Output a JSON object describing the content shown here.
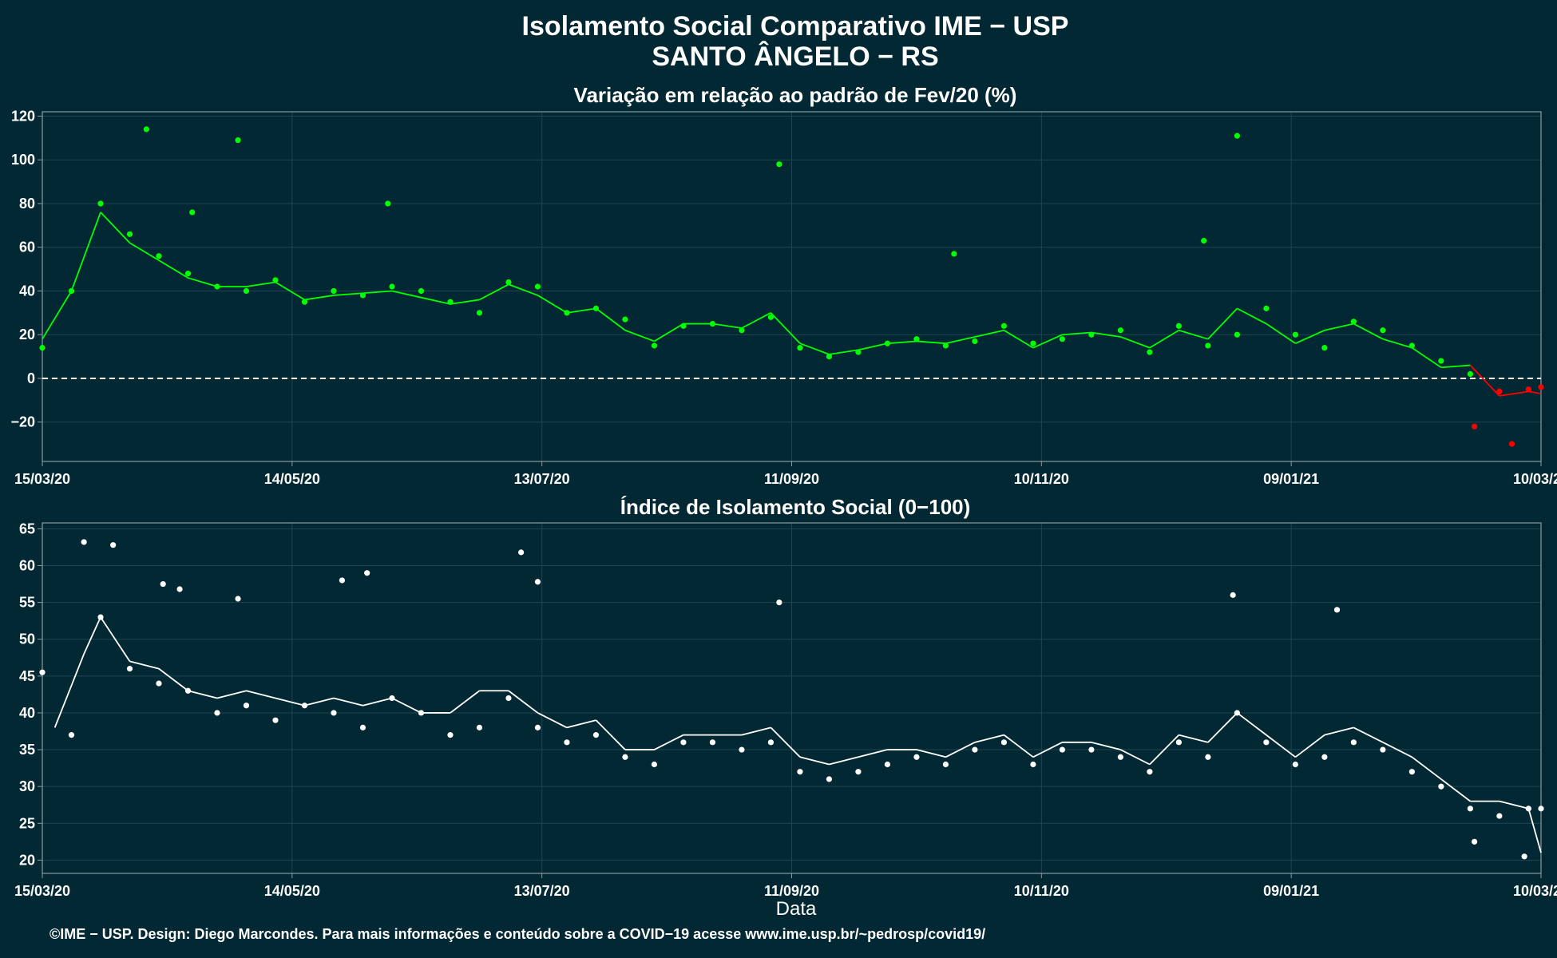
{
  "header": {
    "title": "Isolamento Social Comparativo IME − USP",
    "subtitle": "SANTO ÂNGELO − RS"
  },
  "footer": {
    "credit": "©IME − USP. Design: Diego Marcondes. Para mais informações e conteúdo sobre a COVID−19 acesse www.ime.usp.br/~pedrosp/covid19/"
  },
  "colors": {
    "background": "#022833",
    "panel_border": "#8a9aa0",
    "grid": "#1f4550",
    "positive_points": "#00ff00",
    "negative_points": "#ff0000",
    "index_points": "#ffffff"
  },
  "chart_data": [
    {
      "type": "scatter",
      "title": "Variação em relação ao padrão de Fev/20 (%)",
      "xlabel": "",
      "ylabel": "",
      "x_range": [
        "2020-03-15",
        "2021-03-10"
      ],
      "x_tick_labels": [
        "15/03/20",
        "14/05/20",
        "13/07/20",
        "11/09/20",
        "10/11/20",
        "09/01/21",
        "10/03/21"
      ],
      "ylim": [
        -38,
        122
      ],
      "y_ticks": [
        -20,
        0,
        20,
        40,
        60,
        80,
        100,
        120
      ],
      "reference_line": 0,
      "grid": true,
      "series": [
        {
          "points_approx_weekly": [
            [
              "2020-03-15",
              14
            ],
            [
              "2020-03-22",
              40
            ],
            [
              "2020-03-29",
              80
            ],
            [
              "2020-04-05",
              66
            ],
            [
              "2020-04-12",
              56
            ],
            [
              "2020-04-19",
              48
            ],
            [
              "2020-04-26",
              42
            ],
            [
              "2020-05-03",
              40
            ],
            [
              "2020-05-10",
              45
            ],
            [
              "2020-05-17",
              35
            ],
            [
              "2020-05-24",
              40
            ],
            [
              "2020-05-31",
              38
            ],
            [
              "2020-06-07",
              42
            ],
            [
              "2020-06-14",
              40
            ],
            [
              "2020-06-21",
              35
            ],
            [
              "2020-06-28",
              30
            ],
            [
              "2020-07-05",
              44
            ],
            [
              "2020-07-12",
              42
            ],
            [
              "2020-07-19",
              30
            ],
            [
              "2020-07-26",
              32
            ],
            [
              "2020-08-02",
              27
            ],
            [
              "2020-08-09",
              15
            ],
            [
              "2020-08-16",
              24
            ],
            [
              "2020-08-23",
              25
            ],
            [
              "2020-08-30",
              22
            ],
            [
              "2020-09-06",
              28
            ],
            [
              "2020-09-13",
              14
            ],
            [
              "2020-09-20",
              10
            ],
            [
              "2020-09-27",
              12
            ],
            [
              "2020-10-04",
              16
            ],
            [
              "2020-10-11",
              18
            ],
            [
              "2020-10-18",
              15
            ],
            [
              "2020-10-25",
              17
            ],
            [
              "2020-11-01",
              24
            ],
            [
              "2020-11-08",
              16
            ],
            [
              "2020-11-15",
              18
            ],
            [
              "2020-11-22",
              20
            ],
            [
              "2020-11-29",
              22
            ],
            [
              "2020-12-06",
              12
            ],
            [
              "2020-12-13",
              24
            ],
            [
              "2020-12-20",
              15
            ],
            [
              "2020-12-27",
              20
            ],
            [
              "2021-01-03",
              32
            ],
            [
              "2021-01-10",
              20
            ],
            [
              "2021-01-17",
              14
            ],
            [
              "2021-01-24",
              26
            ],
            [
              "2021-01-31",
              22
            ],
            [
              "2021-02-07",
              15
            ],
            [
              "2021-02-14",
              8
            ],
            [
              "2021-02-21",
              2
            ],
            [
              "2021-02-28",
              -6
            ],
            [
              "2021-03-07",
              -5
            ],
            [
              "2021-03-10",
              -4
            ]
          ],
          "notable_points": [
            [
              "2020-04-09",
              114
            ],
            [
              "2020-05-01",
              109
            ],
            [
              "2020-06-06",
              80
            ],
            [
              "2020-04-20",
              76
            ],
            [
              "2020-09-08",
              98
            ],
            [
              "2020-12-27",
              111
            ],
            [
              "2020-12-19",
              63
            ],
            [
              "2020-10-20",
              57
            ],
            [
              "2021-03-03",
              -30
            ],
            [
              "2021-02-22",
              -22
            ]
          ],
          "moving_average_approx": [
            [
              "2020-03-15",
              18
            ],
            [
              "2020-03-22",
              40
            ],
            [
              "2020-03-29",
              76
            ],
            [
              "2020-04-05",
              62
            ],
            [
              "2020-04-12",
              54
            ],
            [
              "2020-04-19",
              46
            ],
            [
              "2020-04-26",
              42
            ],
            [
              "2020-05-03",
              42
            ],
            [
              "2020-05-10",
              44
            ],
            [
              "2020-05-17",
              36
            ],
            [
              "2020-05-24",
              38
            ],
            [
              "2020-05-31",
              39
            ],
            [
              "2020-06-07",
              40
            ],
            [
              "2020-06-14",
              37
            ],
            [
              "2020-06-21",
              34
            ],
            [
              "2020-06-28",
              36
            ],
            [
              "2020-07-05",
              43
            ],
            [
              "2020-07-12",
              38
            ],
            [
              "2020-07-19",
              30
            ],
            [
              "2020-07-26",
              32
            ],
            [
              "2020-08-02",
              22
            ],
            [
              "2020-08-09",
              17
            ],
            [
              "2020-08-16",
              25
            ],
            [
              "2020-08-23",
              25
            ],
            [
              "2020-08-30",
              23
            ],
            [
              "2020-09-06",
              30
            ],
            [
              "2020-09-13",
              16
            ],
            [
              "2020-09-20",
              11
            ],
            [
              "2020-09-27",
              13
            ],
            [
              "2020-10-04",
              16
            ],
            [
              "2020-10-11",
              17
            ],
            [
              "2020-10-18",
              16
            ],
            [
              "2020-10-25",
              19
            ],
            [
              "2020-11-01",
              22
            ],
            [
              "2020-11-08",
              14
            ],
            [
              "2020-11-15",
              20
            ],
            [
              "2020-11-22",
              21
            ],
            [
              "2020-11-29",
              19
            ],
            [
              "2020-12-06",
              14
            ],
            [
              "2020-12-13",
              22
            ],
            [
              "2020-12-20",
              18
            ],
            [
              "2020-12-27",
              32
            ],
            [
              "2021-01-03",
              25
            ],
            [
              "2021-01-10",
              16
            ],
            [
              "2021-01-17",
              22
            ],
            [
              "2021-01-24",
              25
            ],
            [
              "2021-01-31",
              18
            ],
            [
              "2021-02-07",
              14
            ],
            [
              "2021-02-14",
              5
            ],
            [
              "2021-02-21",
              6
            ],
            [
              "2021-02-28",
              -8
            ],
            [
              "2021-03-07",
              -6
            ],
            [
              "2021-03-10",
              -7
            ]
          ]
        }
      ]
    },
    {
      "type": "scatter",
      "title": "Índice de Isolamento Social (0−100)",
      "xlabel": "Data",
      "ylabel": "",
      "x_range": [
        "2020-03-15",
        "2021-03-10"
      ],
      "x_tick_labels": [
        "15/03/20",
        "14/05/20",
        "13/07/20",
        "11/09/20",
        "10/11/20",
        "09/01/21",
        "10/03/21"
      ],
      "ylim": [
        18.2,
        65.8
      ],
      "y_ticks": [
        20,
        25,
        30,
        35,
        40,
        45,
        50,
        55,
        60,
        65
      ],
      "grid": true,
      "series": [
        {
          "points_approx_weekly": [
            [
              "2020-03-15",
              45.5
            ],
            [
              "2020-03-22",
              37
            ],
            [
              "2020-03-29",
              53
            ],
            [
              "2020-04-05",
              46
            ],
            [
              "2020-04-12",
              44
            ],
            [
              "2020-04-19",
              43
            ],
            [
              "2020-04-26",
              40
            ],
            [
              "2020-05-03",
              41
            ],
            [
              "2020-05-10",
              39
            ],
            [
              "2020-05-17",
              41
            ],
            [
              "2020-05-24",
              40
            ],
            [
              "2020-05-31",
              38
            ],
            [
              "2020-06-07",
              42
            ],
            [
              "2020-06-14",
              40
            ],
            [
              "2020-06-21",
              37
            ],
            [
              "2020-06-28",
              38
            ],
            [
              "2020-07-05",
              42
            ],
            [
              "2020-07-12",
              38
            ],
            [
              "2020-07-19",
              36
            ],
            [
              "2020-07-26",
              37
            ],
            [
              "2020-08-02",
              34
            ],
            [
              "2020-08-09",
              33
            ],
            [
              "2020-08-16",
              36
            ],
            [
              "2020-08-23",
              36
            ],
            [
              "2020-08-30",
              35
            ],
            [
              "2020-09-06",
              36
            ],
            [
              "2020-09-13",
              32
            ],
            [
              "2020-09-20",
              31
            ],
            [
              "2020-09-27",
              32
            ],
            [
              "2020-10-04",
              33
            ],
            [
              "2020-10-11",
              34
            ],
            [
              "2020-10-18",
              33
            ],
            [
              "2020-10-25",
              35
            ],
            [
              "2020-11-01",
              36
            ],
            [
              "2020-11-08",
              33
            ],
            [
              "2020-11-15",
              35
            ],
            [
              "2020-11-22",
              35
            ],
            [
              "2020-11-29",
              34
            ],
            [
              "2020-12-06",
              32
            ],
            [
              "2020-12-13",
              36
            ],
            [
              "2020-12-20",
              34
            ],
            [
              "2020-12-27",
              40
            ],
            [
              "2021-01-03",
              36
            ],
            [
              "2021-01-10",
              33
            ],
            [
              "2021-01-17",
              34
            ],
            [
              "2021-01-24",
              36
            ],
            [
              "2021-01-31",
              35
            ],
            [
              "2021-02-07",
              32
            ],
            [
              "2021-02-14",
              30
            ],
            [
              "2021-02-21",
              27
            ],
            [
              "2021-02-28",
              26
            ],
            [
              "2021-03-07",
              27
            ],
            [
              "2021-03-10",
              27
            ]
          ],
          "notable_points": [
            [
              "2020-03-25",
              63.2
            ],
            [
              "2020-04-01",
              62.8
            ],
            [
              "2020-07-08",
              61.8
            ],
            [
              "2020-07-12",
              57.8
            ],
            [
              "2020-06-01",
              59
            ],
            [
              "2020-05-26",
              58
            ],
            [
              "2020-04-13",
              57.5
            ],
            [
              "2020-04-17",
              56.8
            ],
            [
              "2020-05-01",
              55.5
            ],
            [
              "2020-12-26",
              56
            ],
            [
              "2020-09-08",
              55
            ],
            [
              "2021-01-20",
              54
            ],
            [
              "2021-03-06",
              20.5
            ],
            [
              "2021-02-22",
              22.5
            ]
          ],
          "moving_average_approx": [
            [
              "2020-03-18",
              38
            ],
            [
              "2020-03-25",
              48
            ],
            [
              "2020-03-29",
              53
            ],
            [
              "2020-04-05",
              47
            ],
            [
              "2020-04-12",
              46
            ],
            [
              "2020-04-19",
              43
            ],
            [
              "2020-04-26",
              42
            ],
            [
              "2020-05-03",
              43
            ],
            [
              "2020-05-10",
              42
            ],
            [
              "2020-05-17",
              41
            ],
            [
              "2020-05-24",
              42
            ],
            [
              "2020-05-31",
              41
            ],
            [
              "2020-06-07",
              42
            ],
            [
              "2020-06-14",
              40
            ],
            [
              "2020-06-21",
              40
            ],
            [
              "2020-06-28",
              43
            ],
            [
              "2020-07-05",
              43
            ],
            [
              "2020-07-12",
              40
            ],
            [
              "2020-07-19",
              38
            ],
            [
              "2020-07-26",
              39
            ],
            [
              "2020-08-02",
              35
            ],
            [
              "2020-08-09",
              35
            ],
            [
              "2020-08-16",
              37
            ],
            [
              "2020-08-23",
              37
            ],
            [
              "2020-08-30",
              37
            ],
            [
              "2020-09-06",
              38
            ],
            [
              "2020-09-13",
              34
            ],
            [
              "2020-09-20",
              33
            ],
            [
              "2020-09-27",
              34
            ],
            [
              "2020-10-04",
              35
            ],
            [
              "2020-10-11",
              35
            ],
            [
              "2020-10-18",
              34
            ],
            [
              "2020-10-25",
              36
            ],
            [
              "2020-11-01",
              37
            ],
            [
              "2020-11-08",
              34
            ],
            [
              "2020-11-15",
              36
            ],
            [
              "2020-11-22",
              36
            ],
            [
              "2020-11-29",
              35
            ],
            [
              "2020-12-06",
              33
            ],
            [
              "2020-12-13",
              37
            ],
            [
              "2020-12-20",
              36
            ],
            [
              "2020-12-27",
              40
            ],
            [
              "2021-01-03",
              37
            ],
            [
              "2021-01-10",
              34
            ],
            [
              "2021-01-17",
              37
            ],
            [
              "2021-01-24",
              38
            ],
            [
              "2021-01-31",
              36
            ],
            [
              "2021-02-07",
              34
            ],
            [
              "2021-02-14",
              31
            ],
            [
              "2021-02-21",
              28
            ],
            [
              "2021-02-28",
              28
            ],
            [
              "2021-03-07",
              27
            ],
            [
              "2021-03-10",
              21
            ]
          ]
        }
      ]
    }
  ]
}
